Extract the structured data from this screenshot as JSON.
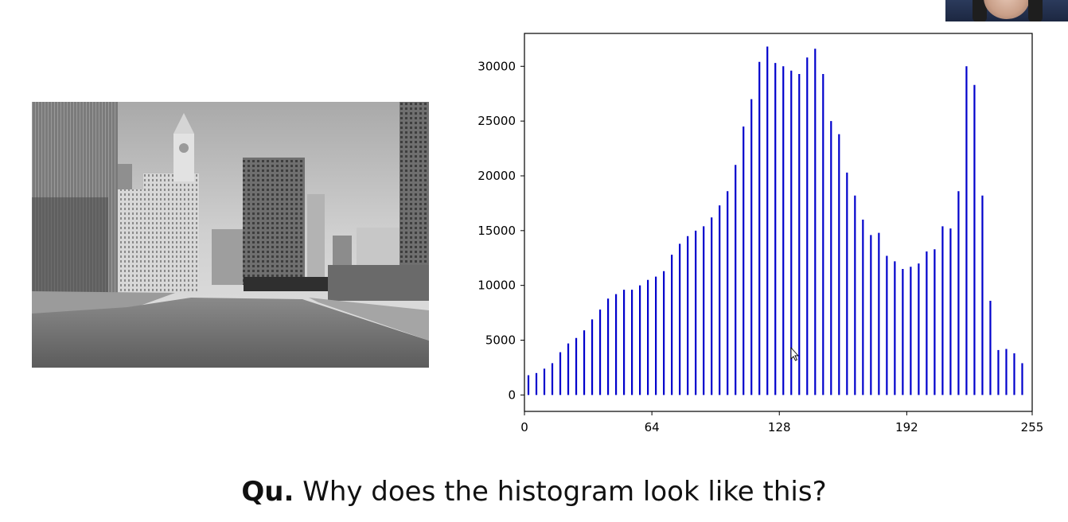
{
  "caption": {
    "prefix": "Qu.",
    "text": " Why does the histogram look like this?"
  },
  "photo": {
    "subject": "grayscale city river photo",
    "icon": "grayscale-cityscape-image"
  },
  "webcam": {
    "icon": "presenter-webcam-thumbnail"
  },
  "cursor": {
    "icon": "mouse-pointer-icon"
  },
  "chart_data": {
    "type": "bar",
    "title": "",
    "xlabel": "",
    "ylabel": "",
    "color": "#0000cc",
    "xlim": [
      0,
      255
    ],
    "ylim": [
      -1500,
      33000
    ],
    "xticks": [
      0,
      64,
      128,
      192,
      255
    ],
    "yticks": [
      0,
      5000,
      10000,
      15000,
      20000,
      25000,
      30000
    ],
    "grid": false,
    "x": [
      2,
      6,
      10,
      14,
      18,
      22,
      26,
      30,
      34,
      38,
      42,
      46,
      50,
      54,
      58,
      62,
      66,
      70,
      74,
      78,
      82,
      86,
      90,
      94,
      98,
      102,
      106,
      110,
      114,
      118,
      122,
      126,
      130,
      134,
      138,
      142,
      146,
      150,
      154,
      158,
      162,
      166,
      170,
      174,
      178,
      182,
      186,
      190,
      194,
      198,
      202,
      206,
      210,
      214,
      218,
      222,
      226,
      230,
      234,
      238,
      242,
      246,
      250,
      254
    ],
    "values": [
      1800,
      2000,
      2400,
      2900,
      3900,
      4700,
      5200,
      5900,
      6900,
      7800,
      8800,
      9200,
      9600,
      9600,
      10000,
      10500,
      10800,
      11300,
      12800,
      13800,
      14500,
      15000,
      15400,
      16200,
      17300,
      18600,
      21000,
      24500,
      27000,
      30400,
      31800,
      30300,
      30000,
      29600,
      29300,
      30800,
      31600,
      29300,
      25000,
      23800,
      20300,
      18200,
      16000,
      14600,
      14800,
      12700,
      12200,
      11500,
      11700,
      12000,
      13100,
      13300,
      15400,
      15200,
      18600,
      30000,
      28300,
      18200,
      8600,
      4100,
      4200,
      3800,
      2900,
      0
    ]
  }
}
